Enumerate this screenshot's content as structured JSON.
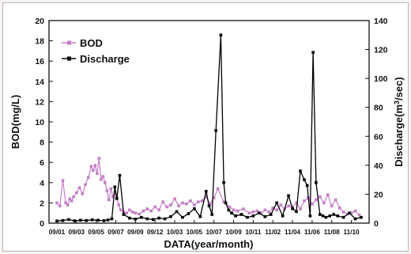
{
  "chart_data": {
    "type": "line",
    "xlabel": "DATA(year/month)",
    "ylabel_left": "BOD(mg/L)",
    "ylabel_right_parts": [
      "Discharge(m",
      "3",
      "/sec)"
    ],
    "ylim_left": [
      0,
      20
    ],
    "ylim_right": [
      0,
      140
    ],
    "yticks_left": [
      "0",
      "2",
      "4",
      "6",
      "8",
      "10",
      "12",
      "14",
      "16",
      "18",
      "20"
    ],
    "yticks_right": [
      "0",
      "20",
      "40",
      "60",
      "80",
      "100",
      "120",
      "140"
    ],
    "categories": [
      "09/01",
      "09/03",
      "09/05",
      "09/07",
      "09/09",
      "09/12",
      "10/03",
      "10/05",
      "10/07",
      "10/09",
      "10/11",
      "11/02",
      "11/04",
      "11/06",
      "11/08",
      "11/10"
    ],
    "legend_position": "top-left",
    "colors": {
      "bod": "#c57fc8",
      "discharge": "#000000"
    },
    "series": [
      {
        "name": "BOD",
        "axis": "left",
        "x": [
          0,
          0.15,
          0.3,
          0.45,
          0.55,
          0.65,
          0.75,
          0.85,
          1.0,
          1.15,
          1.3,
          1.45,
          1.6,
          1.75,
          1.85,
          1.95,
          2.05,
          2.15,
          2.25,
          2.35,
          2.45,
          2.55,
          2.65,
          2.75,
          2.85,
          2.95,
          3.05,
          3.15,
          3.25,
          3.4,
          3.55,
          3.7,
          3.85,
          4.0,
          4.2,
          4.4,
          4.6,
          4.8,
          5.0,
          5.2,
          5.4,
          5.6,
          5.8,
          6.0,
          6.2,
          6.4,
          6.6,
          6.8,
          7.0,
          7.2,
          7.4,
          7.6,
          7.8,
          8.0,
          8.2,
          8.5,
          8.8,
          9.0,
          9.2,
          9.5,
          9.8,
          10.0,
          10.2,
          10.4,
          10.6,
          10.8,
          11.0,
          11.2,
          11.4,
          11.6,
          11.8,
          12.0,
          12.2,
          12.4,
          12.6,
          12.8,
          13.0,
          13.2,
          13.4,
          13.6,
          13.8,
          14.0,
          14.2,
          14.4,
          14.6,
          14.8,
          15.0,
          15.2,
          15.4
        ],
        "values": [
          2.0,
          1.7,
          4.2,
          2.0,
          1.8,
          2.4,
          2.2,
          2.6,
          3.0,
          3.5,
          2.9,
          3.8,
          4.5,
          5.6,
          5.2,
          5.7,
          4.9,
          6.4,
          4.3,
          4.6,
          4.0,
          3.2,
          2.3,
          3.4,
          2.6,
          3.0,
          2.5,
          1.8,
          1.3,
          1.1,
          1.0,
          1.3,
          1.1,
          1.0,
          0.9,
          1.2,
          1.4,
          1.2,
          1.6,
          1.3,
          2.1,
          1.6,
          1.8,
          2.4,
          1.7,
          2.0,
          1.9,
          2.2,
          1.8,
          2.1,
          2.2,
          2.6,
          1.9,
          2.5,
          3.4,
          2.1,
          1.6,
          1.3,
          1.2,
          1.4,
          1.0,
          1.1,
          1.2,
          1.0,
          1.3,
          1.1,
          1.5,
          1.3,
          1.8,
          1.4,
          1.7,
          1.6,
          2.0,
          1.4,
          2.2,
          2.5,
          1.9,
          2.3,
          2.6,
          2.0,
          2.8,
          1.7,
          2.3,
          1.5,
          1.1,
          0.9,
          1.0,
          1.2,
          0.8
        ]
      },
      {
        "name": "Discharge",
        "axis": "right",
        "x": [
          0,
          0.3,
          0.6,
          0.9,
          1.2,
          1.5,
          1.8,
          2.1,
          2.4,
          2.6,
          2.8,
          2.95,
          3.05,
          3.2,
          3.4,
          3.7,
          4.0,
          4.3,
          4.6,
          4.9,
          5.2,
          5.5,
          5.8,
          6.1,
          6.4,
          6.7,
          7.0,
          7.3,
          7.6,
          7.75,
          7.9,
          8.1,
          8.35,
          8.5,
          8.6,
          8.75,
          8.9,
          9.1,
          9.4,
          9.7,
          10.0,
          10.3,
          10.6,
          10.9,
          11.2,
          11.5,
          11.8,
          12.0,
          12.2,
          12.4,
          12.6,
          12.75,
          12.9,
          13.05,
          13.2,
          13.4,
          13.55,
          13.7,
          13.9,
          14.1,
          14.3,
          14.6,
          14.9,
          15.2,
          15.5
        ],
        "values": [
          1.5,
          1.8,
          2.5,
          1.6,
          2.0,
          1.8,
          2.3,
          2.0,
          1.7,
          2.2,
          3.0,
          25.0,
          17.0,
          33.0,
          6.0,
          3.5,
          2.8,
          4.0,
          3.0,
          2.5,
          3.5,
          3.0,
          4.5,
          8.0,
          4.0,
          6.5,
          10.0,
          4.5,
          22.0,
          12.0,
          6.0,
          64.0,
          130.0,
          28.0,
          14.0,
          9.0,
          7.0,
          5.0,
          6.0,
          4.0,
          5.0,
          7.0,
          4.5,
          6.0,
          14.0,
          5.0,
          19.0,
          10.0,
          8.0,
          36.0,
          30.0,
          26.0,
          5.0,
          118.0,
          28.0,
          6.0,
          5.0,
          4.0,
          5.0,
          6.0,
          5.0,
          4.0,
          7.0,
          3.0,
          4.0
        ]
      }
    ]
  }
}
